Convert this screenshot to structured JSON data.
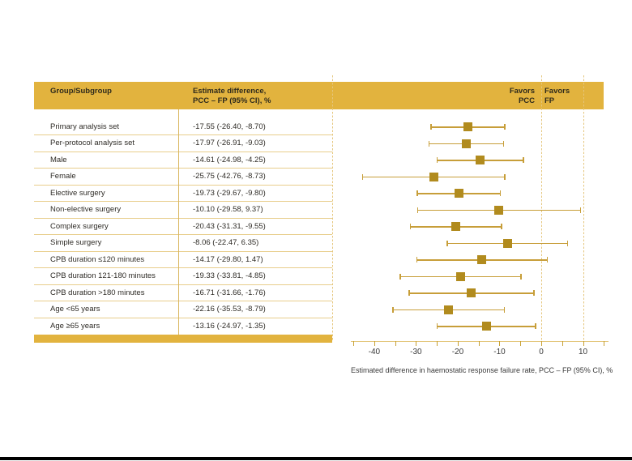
{
  "table": {
    "header": {
      "col1": "Group/Subgroup",
      "col2_line1": "Estimate difference,",
      "col2_line2": "PCC – FP (95% CI), %"
    }
  },
  "plot": {
    "favors_left_line1": "Favors",
    "favors_left_line2": "PCC",
    "favors_right_line1": "Favors",
    "favors_right_line2": "FP",
    "axis_label": "Estimated difference in haemostatic response failure rate, PCC – FP (95% CI), %"
  },
  "chart_data": {
    "type": "forest",
    "xlabel": "Estimated difference in haemostatic response failure rate, PCC – FP (95% CI), %",
    "axis": {
      "min": -45.6,
      "max": 16.1,
      "minor_tick_step": 5,
      "minor_tick_start": -45,
      "minor_tick_end": 15,
      "labeled_ticks": [
        -40,
        -30,
        -20,
        -10,
        0,
        10
      ],
      "reference_lines": [
        0,
        10
      ],
      "grid": false
    },
    "rows": [
      {
        "label": "Primary analysis set",
        "estimate": -17.55,
        "ci_low": -26.4,
        "ci_high": -8.7
      },
      {
        "label": "Per-protocol analysis set",
        "estimate": -17.97,
        "ci_low": -26.91,
        "ci_high": -9.03
      },
      {
        "label": "Male",
        "estimate": -14.61,
        "ci_low": -24.98,
        "ci_high": -4.25
      },
      {
        "label": "Female",
        "estimate": -25.75,
        "ci_low": -42.76,
        "ci_high": -8.73
      },
      {
        "label": "Elective surgery",
        "estimate": -19.73,
        "ci_low": -29.67,
        "ci_high": -9.8
      },
      {
        "label": "Non-elective surgery",
        "estimate": -10.1,
        "ci_low": -29.58,
        "ci_high": 9.37
      },
      {
        "label": "Complex surgery",
        "estimate": -20.43,
        "ci_low": -31.31,
        "ci_high": -9.55
      },
      {
        "label": "Simple surgery",
        "estimate": -8.06,
        "ci_low": -22.47,
        "ci_high": 6.35
      },
      {
        "label": "CPB duration ≤120 minutes",
        "estimate": -14.17,
        "ci_low": -29.8,
        "ci_high": 1.47
      },
      {
        "label": "CPB duration 121-180 minutes",
        "estimate": -19.33,
        "ci_low": -33.81,
        "ci_high": -4.85
      },
      {
        "label": "CPB duration >180 minutes",
        "estimate": -16.71,
        "ci_low": -31.66,
        "ci_high": -1.76
      },
      {
        "label": "Age <65 years",
        "estimate": -22.16,
        "ci_low": -35.53,
        "ci_high": -8.79
      },
      {
        "label": "Age ≥65 years",
        "estimate": -13.16,
        "ci_low": -24.97,
        "ci_high": -1.35
      }
    ]
  },
  "colors": {
    "band_gold": "#e2b33e",
    "marker_gold": "#b18b1e",
    "ci_line_gold": "#c79e39",
    "separator_tan": "#e8ce8c",
    "dashed_tan": "#e5c67c",
    "text_dark": "#2e2b26",
    "black_strip": "#000000"
  }
}
